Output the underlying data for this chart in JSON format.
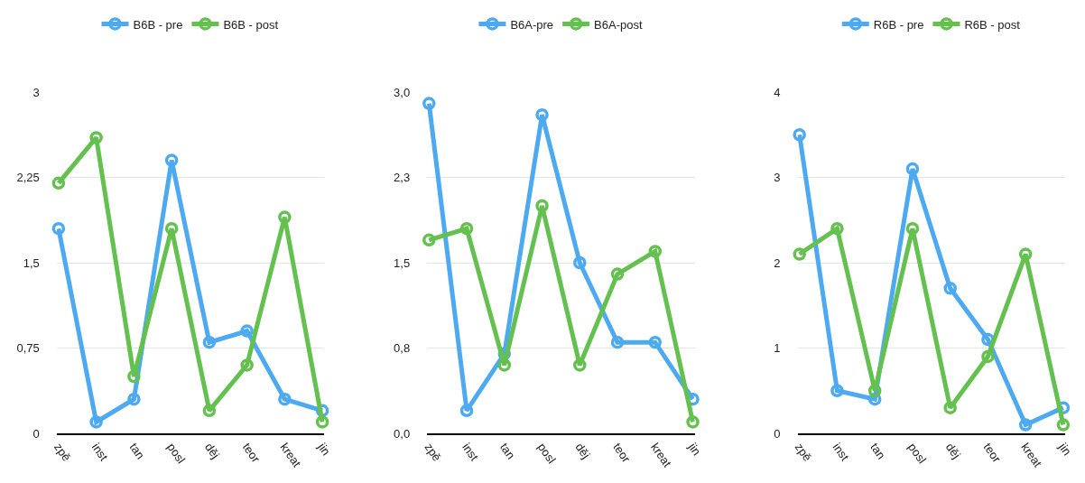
{
  "chart_data": [
    {
      "type": "line",
      "categories": [
        "zpě",
        "inst",
        "tan",
        "posl",
        "děj",
        "teor",
        "kreat",
        "jin"
      ],
      "series": [
        {
          "name": "B6B - pre",
          "color": "#4eaaf0",
          "values": [
            1.8,
            0.1,
            0.3,
            2.4,
            0.8,
            0.9,
            0.3,
            0.2
          ]
        },
        {
          "name": "B6B - post",
          "color": "#64c04f",
          "values": [
            2.2,
            2.6,
            0.5,
            1.8,
            0.2,
            0.6,
            1.9,
            0.1
          ]
        }
      ],
      "ylim": [
        0,
        3
      ],
      "yticks": [
        0,
        {
          "value": 0.75,
          "label": "0,75"
        },
        {
          "value": 1.5,
          "label": "1,5"
        },
        {
          "value": 2.25,
          "label": "2,25"
        },
        3
      ],
      "grid": "y",
      "legend": "top",
      "marker": "circle",
      "line_style": "solid"
    },
    {
      "type": "line",
      "categories": [
        "zpě",
        "inst",
        "tan",
        "posl",
        "děj",
        "teor",
        "kreat",
        "jin"
      ],
      "series": [
        {
          "name": "B6A-pre",
          "color": "#4eaaf0",
          "values": [
            2.9,
            0.2,
            0.7,
            2.8,
            1.5,
            0.8,
            0.8,
            0.3
          ]
        },
        {
          "name": "B6A-post",
          "color": "#64c04f",
          "values": [
            1.7,
            1.8,
            0.6,
            2.0,
            0.6,
            1.4,
            1.6,
            0.1
          ]
        }
      ],
      "ylim": [
        0,
        3
      ],
      "yticks": [
        {
          "value": 0,
          "label": "0,0"
        },
        {
          "value": 0.75,
          "label": "0,8"
        },
        {
          "value": 1.5,
          "label": "1,5"
        },
        {
          "value": 2.25,
          "label": "2,3"
        },
        {
          "value": 3,
          "label": "3,0"
        }
      ],
      "grid": "y",
      "legend": "top",
      "marker": "circle",
      "line_style": "solid"
    },
    {
      "type": "line",
      "categories": [
        "zpě",
        "inst",
        "tan",
        "posl",
        "děj",
        "teor",
        "kreat",
        "jin"
      ],
      "series": [
        {
          "name": "R6B - pre",
          "color": "#4eaaf0",
          "values": [
            3.5,
            0.5,
            0.4,
            3.1,
            1.7,
            1.1,
            0.1,
            0.3
          ]
        },
        {
          "name": "R6B - post",
          "color": "#64c04f",
          "values": [
            2.1,
            2.4,
            0.5,
            2.4,
            0.3,
            0.9,
            2.1,
            0.1
          ]
        }
      ],
      "ylim": [
        0,
        4
      ],
      "yticks": [
        0,
        1,
        2,
        3,
        4
      ],
      "grid": "y",
      "legend": "top",
      "marker": "circle",
      "line_style": "solid"
    }
  ]
}
